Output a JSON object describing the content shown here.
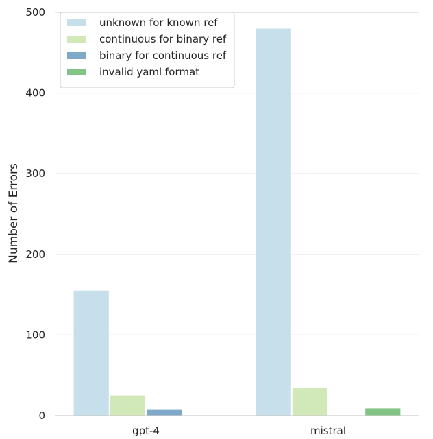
{
  "chart_data": {
    "type": "bar",
    "title": "",
    "xlabel": "",
    "ylabel": "Number of Errors",
    "categories": [
      "gpt-4",
      "mistral"
    ],
    "ylim": [
      0,
      500
    ],
    "yticks": [
      0,
      100,
      200,
      300,
      400,
      500
    ],
    "grid": "horizontal",
    "legend_position": "top-left",
    "series": [
      {
        "name": "unknown for known ref",
        "color": "#c6dfea",
        "values": [
          155,
          480
        ]
      },
      {
        "name": "continuous for binary ref",
        "color": "#d1e8b9",
        "values": [
          25,
          34
        ]
      },
      {
        "name": "binary for continuous ref",
        "color": "#7fa9c9",
        "values": [
          8,
          0
        ]
      },
      {
        "name": "invalid yaml format",
        "color": "#82c485",
        "values": [
          0,
          9
        ]
      }
    ]
  }
}
